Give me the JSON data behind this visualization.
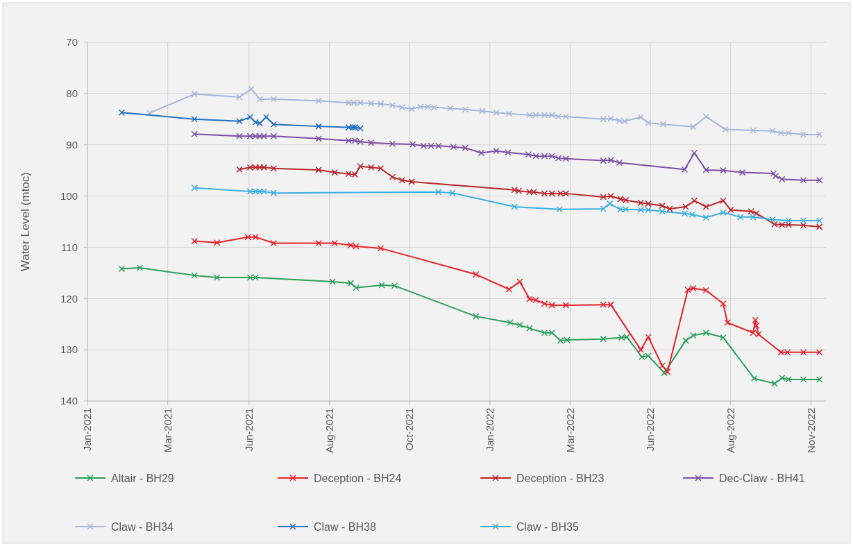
{
  "chart_data": {
    "type": "line",
    "ylabel": "Water Level (mtoc)",
    "ylim": [
      140,
      70
    ],
    "yticks": [
      70,
      80,
      90,
      100,
      110,
      120,
      130,
      140
    ],
    "xlim": [
      "2021-01-01",
      "2022-11-22"
    ],
    "xticks": [
      {
        "value": "2021-01-01",
        "label": "Jan-2021"
      },
      {
        "value": "2021-03-17",
        "label": "Mar-2021"
      },
      {
        "value": "2021-06-01",
        "label": "Jun-2021"
      },
      {
        "value": "2021-08-15",
        "label": "Aug-2021"
      },
      {
        "value": "2021-10-29",
        "label": "Oct-2021"
      },
      {
        "value": "2022-01-12",
        "label": "Jan-2022"
      },
      {
        "value": "2022-03-28",
        "label": "Mar-2022"
      },
      {
        "value": "2022-06-11",
        "label": "Jun-2022"
      },
      {
        "value": "2022-08-25",
        "label": "Aug-2022"
      },
      {
        "value": "2022-11-08",
        "label": "Nov-2022"
      }
    ],
    "grid": true,
    "legend": "bottom",
    "marker": "cross",
    "line_style": "solid",
    "series": [
      {
        "name": "Altair - BH29",
        "color": "#2ca05a",
        "x": [
          "2021-02-02",
          "2021-02-19",
          "2021-04-11",
          "2021-05-02",
          "2021-06-02",
          "2021-06-07",
          "2021-08-18",
          "2021-09-04",
          "2021-09-09",
          "2021-10-03",
          "2021-10-15",
          "2021-12-30",
          "2022-01-31",
          "2022-02-09",
          "2022-02-18",
          "2022-03-04",
          "2022-03-11",
          "2022-03-19",
          "2022-03-25",
          "2022-04-28",
          "2022-05-15",
          "2022-05-20",
          "2022-06-03",
          "2022-06-09",
          "2022-06-24",
          "2022-07-14",
          "2022-07-21",
          "2022-08-02",
          "2022-08-18",
          "2022-09-16",
          "2022-10-05",
          "2022-10-12",
          "2022-10-18",
          "2022-11-01",
          "2022-11-16"
        ],
        "values": [
          114.2,
          114.0,
          115.5,
          115.9,
          115.9,
          115.9,
          116.7,
          117.0,
          117.9,
          117.4,
          117.5,
          123.5,
          124.7,
          125.2,
          125.8,
          126.7,
          126.7,
          128.2,
          128.1,
          127.9,
          127.6,
          127.5,
          131.4,
          131.2,
          134.5,
          128.2,
          127.2,
          126.7,
          127.6,
          135.6,
          136.6,
          135.5,
          135.8,
          135.8,
          135.8
        ]
      },
      {
        "name": "Deception - BH24",
        "color": "#e8202a",
        "x": [
          "2021-04-11",
          "2021-05-02",
          "2021-05-31",
          "2021-06-07",
          "2021-06-24",
          "2021-08-05",
          "2021-08-20",
          "2021-09-04",
          "2021-09-09",
          "2021-10-02",
          "2021-12-30",
          "2022-01-30",
          "2022-02-09",
          "2022-02-18",
          "2022-02-24",
          "2022-03-04",
          "2022-03-11",
          "2022-03-24",
          "2022-04-28",
          "2022-05-05",
          "2022-06-02",
          "2022-06-09",
          "2022-06-22",
          "2022-06-27",
          "2022-07-16",
          "2022-07-21",
          "2022-08-02",
          "2022-08-18",
          "2022-08-22",
          "2022-09-15",
          "2022-09-17",
          "2022-09-18",
          "2022-09-20",
          "2022-10-11",
          "2022-10-17",
          "2022-11-01",
          "2022-11-16"
        ],
        "values": [
          108.8,
          109.1,
          108.0,
          108.0,
          109.2,
          109.2,
          109.2,
          109.6,
          109.8,
          110.2,
          115.3,
          118.2,
          116.7,
          120.1,
          120.3,
          121.0,
          121.3,
          121.3,
          121.2,
          121.2,
          130.0,
          127.5,
          133.1,
          134.3,
          118.3,
          118.0,
          118.4,
          121.0,
          124.7,
          126.7,
          124.2,
          125.3,
          127.0,
          130.5,
          130.5,
          130.5,
          130.5
        ]
      },
      {
        "name": "Deception - BH23",
        "color": "#b8262c",
        "x": [
          "2021-05-23",
          "2021-06-02",
          "2021-06-07",
          "2021-06-11",
          "2021-06-15",
          "2021-06-24",
          "2021-08-05",
          "2021-08-20",
          "2021-09-02",
          "2021-09-08",
          "2021-09-13",
          "2021-09-23",
          "2021-10-02",
          "2021-10-13",
          "2021-10-22",
          "2021-10-31",
          "2022-02-04",
          "2022-02-08",
          "2022-02-18",
          "2022-02-22",
          "2022-03-04",
          "2022-03-11",
          "2022-03-19",
          "2022-03-24",
          "2022-04-28",
          "2022-05-05",
          "2022-05-14",
          "2022-05-19",
          "2022-06-02",
          "2022-06-09",
          "2022-06-22",
          "2022-06-29",
          "2022-07-14",
          "2022-07-22",
          "2022-08-02",
          "2022-08-18",
          "2022-08-25",
          "2022-09-13",
          "2022-09-18",
          "2022-10-05",
          "2022-10-12",
          "2022-10-18",
          "2022-11-01",
          "2022-11-16"
        ],
        "values": [
          94.8,
          94.4,
          94.4,
          94.4,
          94.4,
          94.6,
          94.9,
          95.4,
          95.7,
          95.8,
          94.2,
          94.4,
          94.6,
          96.3,
          96.9,
          97.2,
          98.8,
          99.0,
          99.2,
          99.2,
          99.5,
          99.5,
          99.5,
          99.5,
          100.2,
          100.0,
          100.6,
          100.8,
          101.3,
          101.5,
          101.9,
          102.5,
          102.1,
          100.9,
          102.1,
          100.9,
          102.7,
          103.0,
          103.4,
          105.5,
          105.6,
          105.6,
          105.7,
          106.0
        ]
      },
      {
        "name": "Dec-Claw - BH41",
        "color": "#7b4fa5",
        "x": [
          "2021-04-11",
          "2021-05-23",
          "2021-06-02",
          "2021-06-07",
          "2021-06-11",
          "2021-06-15",
          "2021-06-24",
          "2021-08-05",
          "2021-09-02",
          "2021-09-08",
          "2021-09-13",
          "2021-09-23",
          "2021-10-13",
          "2021-11-01",
          "2021-11-11",
          "2021-11-18",
          "2021-11-25",
          "2021-12-09",
          "2021-12-20",
          "2022-01-04",
          "2022-01-18",
          "2022-01-29",
          "2022-02-17",
          "2022-02-24",
          "2022-03-04",
          "2022-03-11",
          "2022-03-17",
          "2022-03-24",
          "2022-04-28",
          "2022-05-05",
          "2022-05-13",
          "2022-07-13",
          "2022-07-22",
          "2022-08-02",
          "2022-08-18",
          "2022-09-05",
          "2022-10-04",
          "2022-10-06",
          "2022-10-12",
          "2022-11-01",
          "2022-11-16"
        ],
        "values": [
          87.9,
          88.3,
          88.3,
          88.3,
          88.3,
          88.3,
          88.3,
          88.8,
          89.2,
          89.2,
          89.4,
          89.6,
          89.8,
          89.9,
          90.2,
          90.2,
          90.2,
          90.4,
          90.6,
          91.6,
          91.2,
          91.5,
          91.9,
          92.2,
          92.2,
          92.2,
          92.6,
          92.7,
          93.1,
          93.0,
          93.5,
          94.8,
          91.6,
          94.9,
          95.0,
          95.4,
          95.6,
          96.1,
          96.7,
          96.9,
          96.9
        ]
      },
      {
        "name": "Claw - BH34",
        "color": "#a6b6dc",
        "x": [
          "2021-02-28",
          "2021-04-11",
          "2021-05-23",
          "2021-06-03",
          "2021-06-11",
          "2021-06-24",
          "2021-08-05",
          "2021-09-02",
          "2021-09-07",
          "2021-09-13",
          "2021-09-23",
          "2021-10-02",
          "2021-10-13",
          "2021-10-22",
          "2021-10-31",
          "2021-11-08",
          "2021-11-15",
          "2021-11-21",
          "2021-12-06",
          "2021-12-20",
          "2022-01-05",
          "2022-01-18",
          "2022-01-30",
          "2022-02-18",
          "2022-02-24",
          "2022-03-04",
          "2022-03-11",
          "2022-03-17",
          "2022-03-24",
          "2022-04-28",
          "2022-05-05",
          "2022-05-13",
          "2022-05-18",
          "2022-06-02",
          "2022-06-09",
          "2022-06-23",
          "2022-07-21",
          "2022-08-02",
          "2022-08-20",
          "2022-09-15",
          "2022-10-03",
          "2022-10-11",
          "2022-10-18",
          "2022-11-01",
          "2022-11-16"
        ],
        "values": [
          83.8,
          80.1,
          80.7,
          79.1,
          81.1,
          81.1,
          81.4,
          81.8,
          81.8,
          81.8,
          81.9,
          82.0,
          82.3,
          82.7,
          83.0,
          82.6,
          82.6,
          82.7,
          82.9,
          83.1,
          83.4,
          83.7,
          83.9,
          84.2,
          84.2,
          84.2,
          84.2,
          84.5,
          84.5,
          85.0,
          84.9,
          85.3,
          85.4,
          84.6,
          85.7,
          86.0,
          86.5,
          84.5,
          87.0,
          87.2,
          87.3,
          87.7,
          87.7,
          88.0,
          88.0
        ]
      },
      {
        "name": "Claw - BH38",
        "color": "#1f6fc0",
        "x": [
          "2021-02-02",
          "2021-04-11",
          "2021-05-23",
          "2021-06-02",
          "2021-06-07",
          "2021-06-11",
          "2021-06-17",
          "2021-06-24",
          "2021-08-05",
          "2021-09-02",
          "2021-09-06",
          "2021-09-08",
          "2021-09-13"
        ],
        "values": [
          83.7,
          85.0,
          85.4,
          84.6,
          85.6,
          85.8,
          84.6,
          86.0,
          86.4,
          86.6,
          86.6,
          86.6,
          86.8
        ]
      },
      {
        "name": "Claw - BH35",
        "color": "#3ab0e0",
        "x": [
          "2021-04-11",
          "2021-06-02",
          "2021-06-07",
          "2021-06-11",
          "2021-06-15",
          "2021-06-24",
          "2021-11-25",
          "2021-12-08",
          "2022-02-04",
          "2022-03-18",
          "2022-04-28",
          "2022-05-04",
          "2022-05-14",
          "2022-05-19",
          "2022-06-02",
          "2022-06-09",
          "2022-06-22",
          "2022-07-13",
          "2022-07-20",
          "2022-08-02",
          "2022-08-18",
          "2022-09-03",
          "2022-09-15",
          "2022-10-03",
          "2022-10-18",
          "2022-11-01",
          "2022-11-16"
        ],
        "values": [
          98.4,
          99.1,
          99.1,
          99.1,
          99.1,
          99.4,
          99.2,
          99.4,
          102.1,
          102.6,
          102.5,
          101.5,
          102.6,
          102.6,
          102.7,
          102.7,
          103.0,
          103.4,
          103.6,
          104.2,
          103.2,
          104.1,
          104.1,
          104.6,
          104.8,
          104.8,
          104.8
        ]
      }
    ]
  }
}
